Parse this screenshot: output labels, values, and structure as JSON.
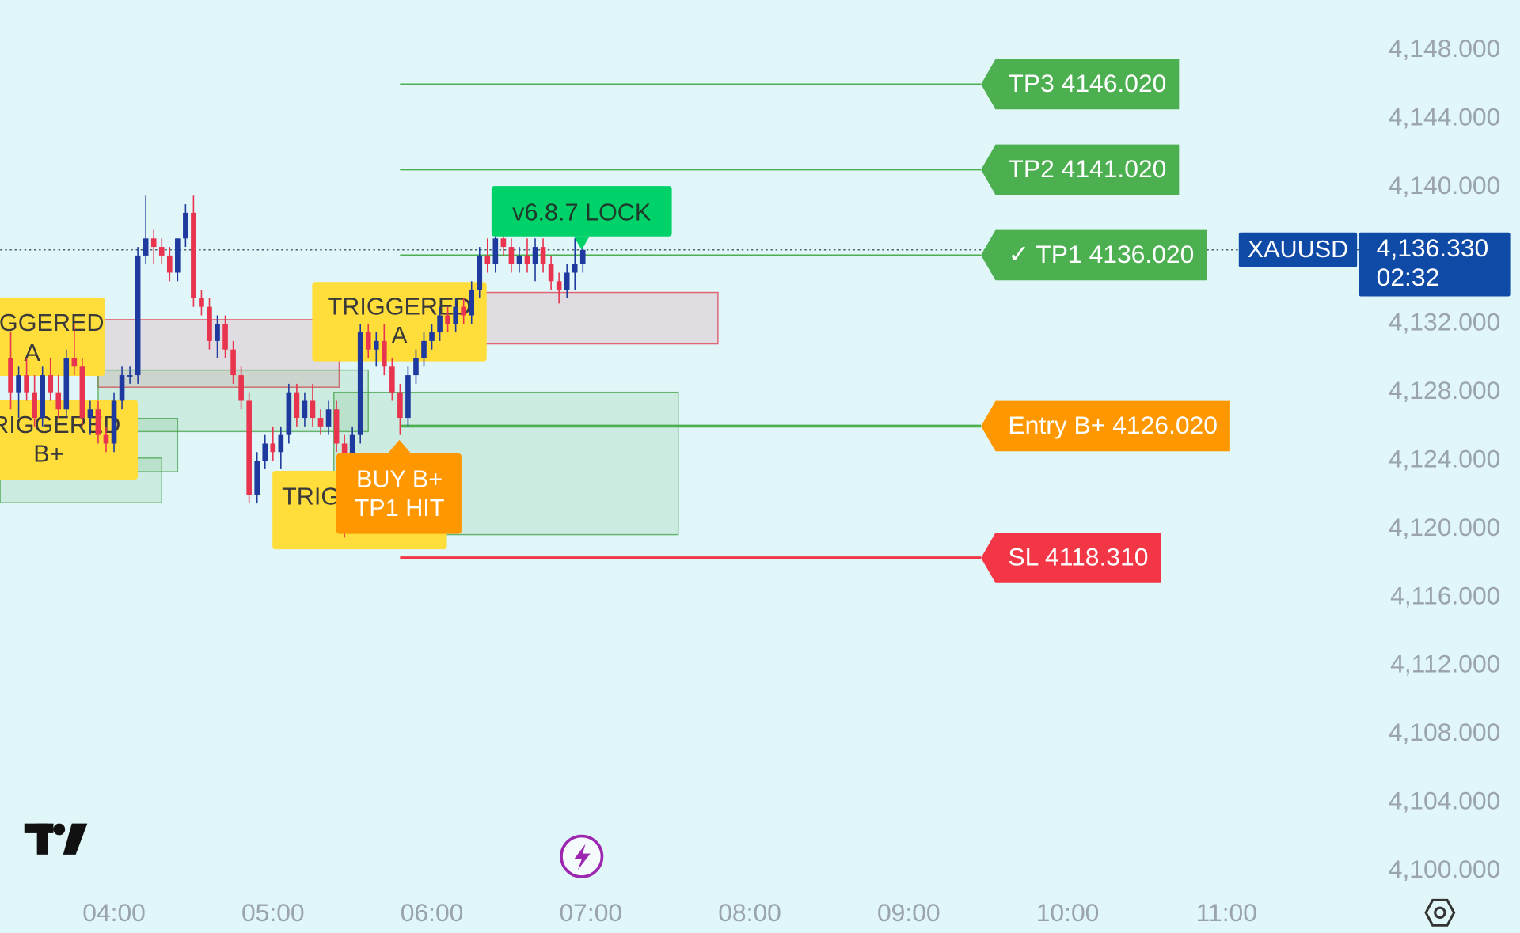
{
  "chart_data": {
    "type": "candlestick",
    "symbol": "XAUUSD",
    "countdown": "02:32",
    "last_price": {
      "value": 4136.33,
      "label": "4,136.330"
    },
    "up_color": "#1f3a9e",
    "down_color": "#e8344e",
    "x": [
      "03:21",
      "03:24",
      "03:27",
      "03:30",
      "03:33",
      "03:36",
      "03:39",
      "03:42",
      "03:45",
      "03:48",
      "03:51",
      "03:54",
      "03:57",
      "04:00",
      "04:03",
      "04:06",
      "04:09",
      "04:12",
      "04:15",
      "04:18",
      "04:21",
      "04:24",
      "04:27",
      "04:30",
      "04:33",
      "04:36",
      "04:39",
      "04:42",
      "04:45",
      "04:48",
      "04:51",
      "04:54",
      "04:57",
      "05:00",
      "05:03",
      "05:06",
      "05:09",
      "05:12",
      "05:15",
      "05:18",
      "05:21",
      "05:24",
      "05:27",
      "05:30",
      "05:33",
      "05:36",
      "05:39",
      "05:42",
      "05:45",
      "05:48",
      "05:51",
      "05:54",
      "05:57",
      "06:00",
      "06:03",
      "06:06",
      "06:09",
      "06:12",
      "06:15",
      "06:18",
      "06:21",
      "06:24",
      "06:27",
      "06:30",
      "06:33",
      "06:36",
      "06:39",
      "06:42",
      "06:45",
      "06:48",
      "06:51",
      "06:54",
      "06:57"
    ],
    "open": [
      4130,
      4128,
      4129,
      4128,
      4126.5,
      4129,
      4128,
      4127,
      4130,
      4129.5,
      4126.5,
      4127,
      4125.5,
      4125,
      4127.5,
      4129,
      4129,
      4136,
      4137,
      4136.5,
      4136,
      4135,
      4137,
      4138.5,
      4133.5,
      4133,
      4131,
      4132,
      4130.5,
      4129,
      4127.5,
      4122,
      4124,
      4125,
      4124.5,
      4125.5,
      4128,
      4126.5,
      4127.5,
      4126.5,
      4126,
      4127,
      4125,
      4120,
      4125.5,
      4131.5,
      4130.5,
      4131,
      4129.5,
      4128,
      4126.5,
      4129,
      4130,
      4131,
      4131.5,
      4132.5,
      4132,
      4133,
      4132.5,
      4134,
      4136,
      4135.5,
      4137,
      4136.5,
      4135.5,
      4136,
      4135.5,
      4136.5,
      4135.5,
      4134.5,
      4134,
      4135,
      4135.5
    ],
    "high": [
      4131.5,
      4129.5,
      4130,
      4129,
      4129.5,
      4130,
      4129,
      4130.5,
      4132,
      4130,
      4127.5,
      4127.5,
      4126,
      4128,
      4129.5,
      4129.5,
      4136.5,
      4139.5,
      4137.5,
      4137,
      4136.5,
      4137,
      4139,
      4139.5,
      4134,
      4133.5,
      4132.5,
      4132.5,
      4131,
      4129.5,
      4128,
      4124.5,
      4125.5,
      4126,
      4126,
      4128.5,
      4128.5,
      4128,
      4128.5,
      4127,
      4127.5,
      4127.5,
      4125.5,
      4126,
      4132,
      4132,
      4131.5,
      4132,
      4130,
      4128.5,
      4129.5,
      4130.5,
      4131.5,
      4132,
      4133,
      4133,
      4133.5,
      4133.5,
      4134.5,
      4136.5,
      4137,
      4137.5,
      4138,
      4137,
      4136.5,
      4137,
      4137,
      4137,
      4136,
      4135,
      4135.5,
      4137,
      4136.5
    ],
    "low": [
      4127,
      4126.5,
      4127.5,
      4126,
      4126,
      4127.5,
      4126.5,
      4126.5,
      4129,
      4126,
      4125.5,
      4125,
      4124.5,
      4124.5,
      4127,
      4128.5,
      4128.5,
      4135.5,
      4135.5,
      4135.5,
      4134.5,
      4134.5,
      4136.5,
      4133,
      4132.5,
      4130.5,
      4130,
      4130,
      4128.5,
      4127,
      4121.5,
      4121.5,
      4123.5,
      4124,
      4123.5,
      4125,
      4126,
      4126,
      4126,
      4125.5,
      4125.5,
      4124.5,
      4119.5,
      4119.8,
      4125,
      4130,
      4129.5,
      4129,
      4127.5,
      4125.5,
      4126,
      4128.5,
      4129.5,
      4130.5,
      4131,
      4131.5,
      4131.5,
      4132,
      4132,
      4133.5,
      4135,
      4135,
      4136,
      4135,
      4135,
      4135,
      4134.5,
      4135,
      4134,
      4133.2,
      4133.5,
      4134,
      4135
    ],
    "close": [
      4128,
      4129,
      4128,
      4126.5,
      4129,
      4128,
      4127,
      4130,
      4129.5,
      4126.5,
      4127,
      4125.5,
      4125,
      4127.5,
      4129,
      4129,
      4136,
      4137,
      4136.5,
      4136,
      4135,
      4137,
      4138.5,
      4133.5,
      4133,
      4131,
      4132,
      4130.5,
      4129,
      4127.5,
      4122,
      4124,
      4125,
      4124.5,
      4125.5,
      4128,
      4126.5,
      4127.5,
      4126.5,
      4126,
      4127,
      4125,
      4120,
      4125.5,
      4131.5,
      4130.5,
      4131,
      4129.5,
      4128,
      4126.5,
      4129,
      4130,
      4131,
      4131.5,
      4132.5,
      4132,
      4133,
      4132.5,
      4134,
      4136,
      4135.5,
      4137,
      4136.5,
      4135.5,
      4136,
      4135.5,
      4136.5,
      4135.5,
      4134.5,
      4134,
      4135,
      4135.5,
      4136.33
    ],
    "xlim": [
      "03:17",
      "11:50"
    ],
    "xticks": [
      "04:00",
      "05:00",
      "06:00",
      "07:00",
      "08:00",
      "09:00",
      "10:00",
      "11:00"
    ],
    "ylim": [
      4098.8,
      4150.95
    ],
    "yticks": [
      {
        "value": 4100,
        "label": "4,100.000"
      },
      {
        "value": 4104,
        "label": "4,104.000"
      },
      {
        "value": 4108,
        "label": "4,108.000"
      },
      {
        "value": 4112,
        "label": "4,112.000"
      },
      {
        "value": 4116,
        "label": "4,116.000"
      },
      {
        "value": 4120,
        "label": "4,120.000"
      },
      {
        "value": 4124,
        "label": "4,124.000"
      },
      {
        "value": 4128,
        "label": "4,128.000"
      },
      {
        "value": 4132,
        "label": "4,132.000"
      },
      {
        "value": 4136,
        "label": "4,136.000"
      },
      {
        "value": 4140,
        "label": "4,140.000"
      },
      {
        "value": 4144,
        "label": "4,144.000"
      },
      {
        "value": 4148,
        "label": "4,148.000"
      }
    ],
    "grid": false,
    "zones": [
      {
        "color": "#e2374a",
        "from": "03:54",
        "to": "05:25",
        "top": 4132.25,
        "bottom": 4128.3
      },
      {
        "color": "#43a047",
        "from": "03:54",
        "to": "05:36",
        "top": 4129.3,
        "bottom": 4125.7
      },
      {
        "color": "#e2374a",
        "from": "06:20",
        "to": "07:48",
        "top": 4133.84,
        "bottom": 4130.83
      },
      {
        "color": "#43a047",
        "from": "05:23",
        "to": "07:33",
        "top": 4128,
        "bottom": 4119.67
      },
      {
        "color": "#43a047",
        "from": "03:17",
        "to": "04:24",
        "top": 4126.47,
        "bottom": 4123.35
      },
      {
        "color": "#43a047",
        "from": "03:17",
        "to": "04:18",
        "top": 4124.15,
        "bottom": 4121.54
      }
    ],
    "levels": [
      {
        "label": "TP3 4146.020",
        "value": 4146.02,
        "color": "#4caf50",
        "line_width": 1.5,
        "from": "05:48"
      },
      {
        "label": "TP2 4141.020",
        "value": 4141.02,
        "color": "#4caf50",
        "line_width": 1.5,
        "from": "05:48"
      },
      {
        "label": "✓ TP1 4136.020",
        "value": 4136.02,
        "color": "#4caf50",
        "line_width": 1.5,
        "from": "05:48"
      },
      {
        "label": "Entry B+ 4126.020",
        "value": 4126.02,
        "color": "#ff9800",
        "line_width": 3,
        "from": "05:48"
      },
      {
        "label": "SL 4118.310",
        "value": 4118.31,
        "color": "#f23645",
        "line_width": 3,
        "from": "05:48"
      }
    ],
    "annotations": [
      {
        "lines": [
          "TRIGGERED",
          "A"
        ],
        "color": "#ffdd3a"
      },
      {
        "lines": [
          "TRIGGERED",
          "B+"
        ],
        "color": "#ffdd3a"
      },
      {
        "lines": [
          "TRIGGERED",
          "A"
        ],
        "color": "#ffdd3a"
      },
      {
        "lines": [
          "TRIGGERED"
        ],
        "color": "#ffdd3a"
      },
      {
        "lines": [
          "BUY B+",
          "TP1 HIT"
        ],
        "color": "#ff9800"
      },
      {
        "lines": [
          "v6.8.7 LOCK"
        ],
        "color": "#00d26a"
      }
    ]
  }
}
